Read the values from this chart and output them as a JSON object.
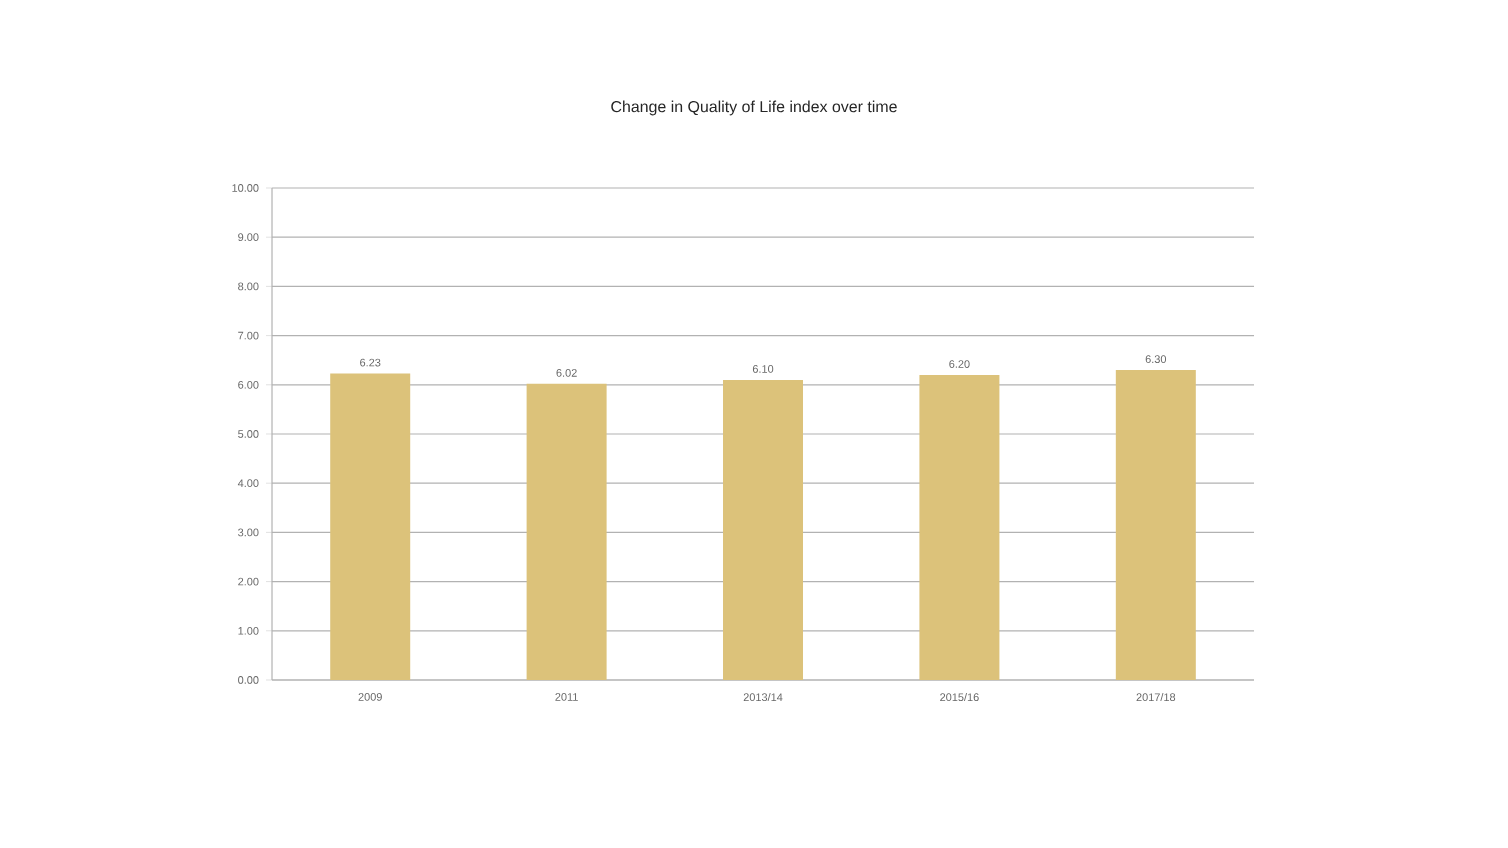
{
  "chart_data": {
    "type": "bar",
    "title": "Change in Quality of Life index over time",
    "categories": [
      "2009",
      "2011",
      "2013/14",
      "2015/16",
      "2017/18"
    ],
    "values": [
      6.23,
      6.02,
      6.1,
      6.2,
      6.3
    ],
    "value_labels": [
      "6.23",
      "6.02",
      "6.10",
      "6.20",
      "6.30"
    ],
    "color": "#dcc27a",
    "ylim": [
      0,
      10
    ],
    "yticks": [
      {
        "value": 0,
        "label": "0.00"
      },
      {
        "value": 1,
        "label": "1.00"
      },
      {
        "value": 2,
        "label": "2.00"
      },
      {
        "value": 3,
        "label": "3.00"
      },
      {
        "value": 4,
        "label": "4.00"
      },
      {
        "value": 5,
        "label": "5.00"
      },
      {
        "value": 6,
        "label": "6.00"
      },
      {
        "value": 7,
        "label": "7.00"
      },
      {
        "value": 8,
        "label": "8.00"
      },
      {
        "value": 9,
        "label": "9.00"
      },
      {
        "value": 10,
        "label": "10.00"
      }
    ],
    "grid": "y"
  }
}
